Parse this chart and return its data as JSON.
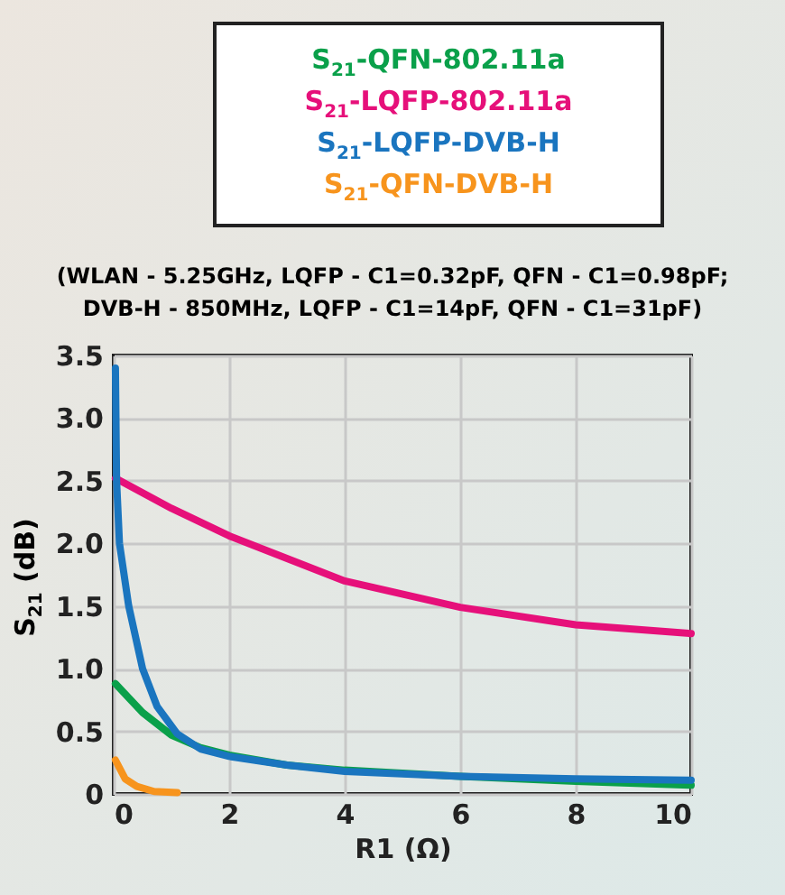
{
  "chart_data": {
    "type": "line",
    "subtitle": "(WLAN - 5.25GHz, LQFP - C1=0.32pF, QFN - C1=0.98pF;\nDVB-H - 850MHz, LQFP - C1=14pF, QFN - C1=31pF)",
    "xlabel": "R1 (Ω)",
    "ylabel": "S$_{21}$ (dB)",
    "legend": "top",
    "series": [
      {
        "name": "S$_{21}$-QFN-802.11a",
        "color": "#0aa04a",
        "x": [
          0.03,
          0.5,
          1,
          1.5,
          2,
          3,
          4,
          6,
          8,
          10
        ],
        "values": [
          0.88,
          0.65,
          0.47,
          0.37,
          0.31,
          0.23,
          0.19,
          0.14,
          0.1,
          0.07
        ]
      },
      {
        "name": "S$_{21}$-LQFP-802.11a",
        "color": "#e6107a",
        "x": [
          0.03,
          1,
          2,
          4,
          6,
          8,
          10
        ],
        "values": [
          2.52,
          2.28,
          2.06,
          1.7,
          1.49,
          1.35,
          1.28
        ]
      },
      {
        "name": "S$_{21}$-LQFP-DVB-H",
        "color": "#1a75bf",
        "x": [
          0.03,
          0.05,
          0.1,
          0.26,
          0.5,
          0.75,
          1.1,
          1.5,
          2,
          3,
          4,
          6,
          8,
          10
        ],
        "values": [
          3.4,
          2.5,
          2.0,
          1.5,
          1.0,
          0.7,
          0.48,
          0.36,
          0.3,
          0.23,
          0.18,
          0.14,
          0.12,
          0.11
        ]
      },
      {
        "name": "S$_{21}$-QFN-DVB-H",
        "color": "#f7941d",
        "x": [
          0.03,
          0.2,
          0.4,
          0.7,
          1.1
        ],
        "values": [
          0.27,
          0.12,
          0.06,
          0.02,
          0.01
        ]
      }
    ],
    "xlim": [
      0,
      10
    ],
    "xticks": [
      0,
      2,
      4,
      6,
      8,
      10
    ],
    "ylim": [
      0,
      3.5
    ],
    "yticks": [
      0,
      {
        "value": 0.5,
        "label": "0.5"
      },
      {
        "value": 1,
        "label": "1.0"
      },
      {
        "value": 1.5,
        "label": "1.5"
      },
      {
        "value": 2,
        "label": "2.0"
      },
      {
        "value": 2.5,
        "label": "2.5"
      },
      {
        "value": 3,
        "label": "3.0"
      },
      {
        "value": 3.5,
        "label": "3.5"
      }
    ],
    "grid": true,
    "marker": "none",
    "line_style": "solid"
  }
}
